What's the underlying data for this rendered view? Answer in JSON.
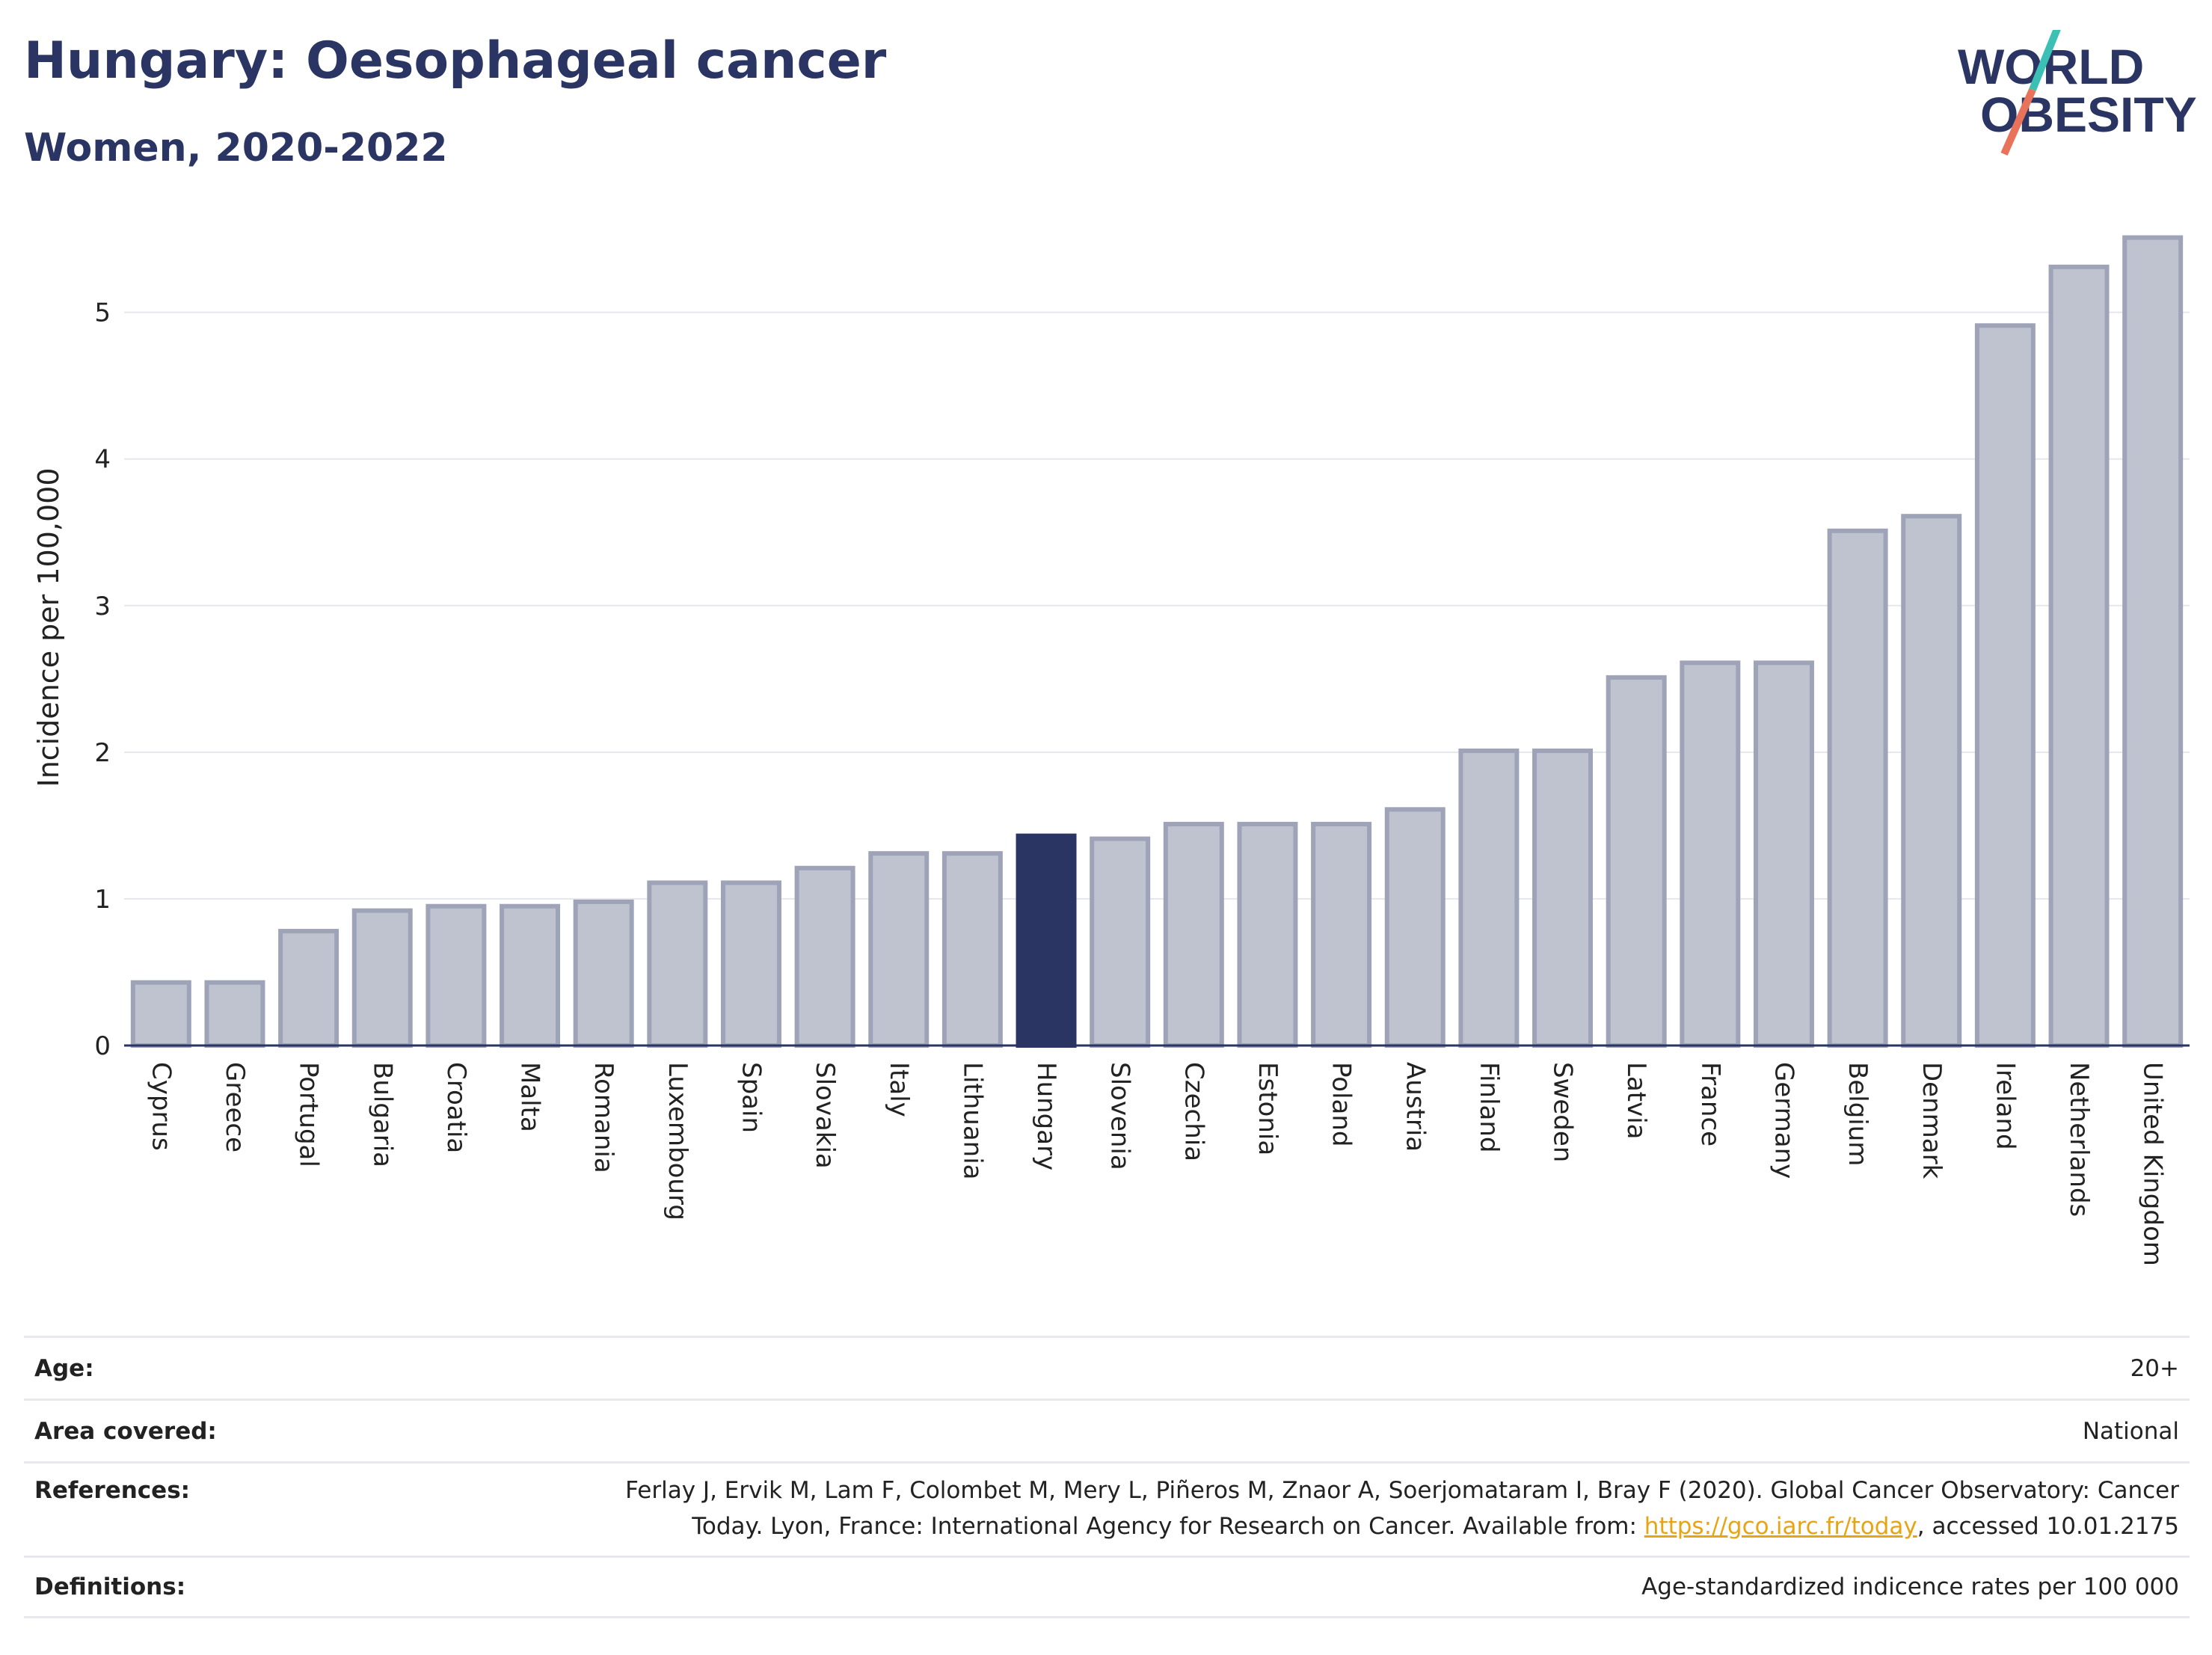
{
  "header": {
    "title": "Hungary: Oesophageal cancer",
    "subtitle": "Women, 2020-2022"
  },
  "logo": {
    "line1": "WORLD",
    "line2": "OBESITY",
    "accent_colors": [
      "#3cbfb4",
      "#e8735a"
    ]
  },
  "colors": {
    "highlight_bar": "#2b3563",
    "bar": "#bfc2cf",
    "bar_border": "#9ea3b8",
    "text_dark": "#2b3563",
    "link": "#e8a413"
  },
  "chart_data": {
    "type": "bar",
    "ylabel": "Incidence per 100,000",
    "xlabel": "",
    "ylim": [
      0,
      5.6
    ],
    "yticks": [
      0,
      1,
      2,
      3,
      4,
      5
    ],
    "grid": true,
    "highlight": "Hungary",
    "categories": [
      "Cyprus",
      "Greece",
      "Portugal",
      "Bulgaria",
      "Croatia",
      "Malta",
      "Romania",
      "Luxembourg",
      "Spain",
      "Slovakia",
      "Italy",
      "Lithuania",
      "Hungary",
      "Slovenia",
      "Czechia",
      "Estonia",
      "Poland",
      "Austria",
      "Finland",
      "Sweden",
      "Latvia",
      "France",
      "Germany",
      "Belgium",
      "Denmark",
      "Ireland",
      "Netherlands",
      "United Kingdom"
    ],
    "values": [
      0.43,
      0.43,
      0.78,
      0.92,
      0.95,
      0.95,
      0.98,
      1.11,
      1.11,
      1.21,
      1.31,
      1.31,
      1.43,
      1.41,
      1.51,
      1.51,
      1.51,
      1.61,
      2.01,
      2.01,
      2.51,
      2.61,
      2.61,
      3.51,
      3.61,
      4.91,
      5.31,
      5.51
    ]
  },
  "info": {
    "age_label": "Age:",
    "age_value": "20+",
    "area_label": "Area covered:",
    "area_value": "National",
    "references_label": "References:",
    "references_text_1": "Ferlay J, Ervik M, Lam F, Colombet M, Mery L, Piñeros M, Znaor A, Soerjomataram I, Bray F (2020). Global Cancer Observatory: Cancer",
    "references_text_2": "Today. Lyon, France: International Agency for Research on Cancer. Available from: ",
    "references_link": "https://gco.iarc.fr/today",
    "references_text_3": ", accessed 10.01.2175",
    "definitions_label": "Definitions:",
    "definitions_value": "Age-standardized indicence rates per 100 000"
  }
}
